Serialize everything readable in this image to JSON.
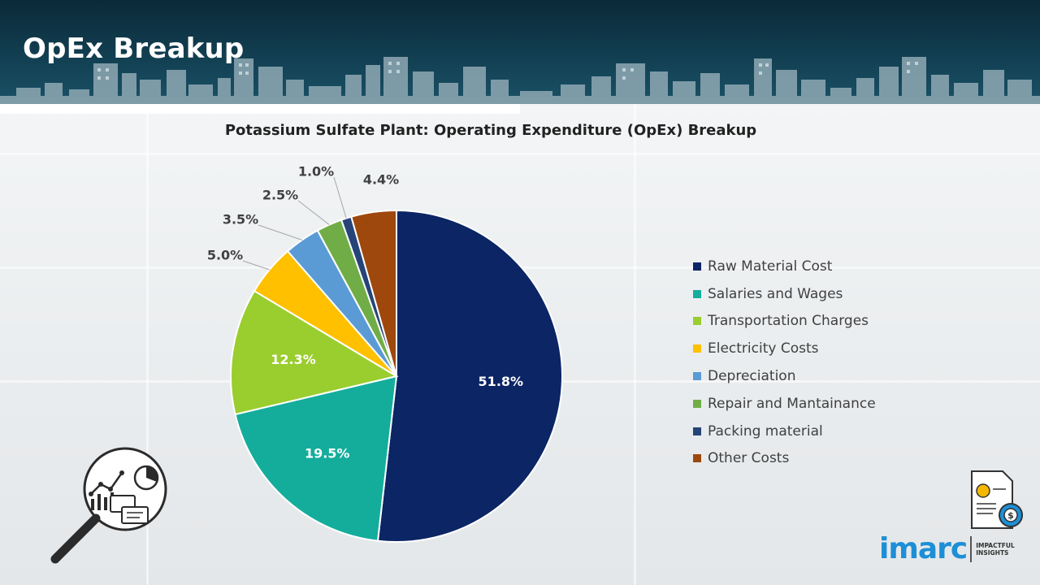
{
  "header": {
    "title": "OpEx Breakup"
  },
  "chart_data": {
    "type": "pie",
    "title": "Potassium Sulfate Plant: Operating Expenditure (OpEx) Breakup",
    "legend_position": "right",
    "categories": [
      "Raw Material Cost",
      "Salaries and Wages",
      "Transportation Charges",
      "Electricity Costs",
      "Depreciation",
      "Repair and Mantainance",
      "Packing material",
      "Other Costs"
    ],
    "values": [
      51.8,
      19.5,
      12.3,
      5.0,
      3.5,
      2.5,
      1.0,
      4.4
    ],
    "labels": [
      "51.8%",
      "19.5%",
      "12.3%",
      "5.0%",
      "3.5%",
      "2.5%",
      "1.0%",
      "4.4%"
    ],
    "colors": [
      "#0b2565",
      "#14ad9c",
      "#9acd2e",
      "#ffc000",
      "#5b9bd5",
      "#70ad47",
      "#264478",
      "#9e480e"
    ]
  },
  "logo": {
    "word": "imarc",
    "tagline": "IMPACTFUL\nINSIGHTS",
    "color": "#1d8fd6"
  },
  "icons": {
    "magnifier": "magnifier-analytics-icon",
    "document": "document-money-gear-icon"
  }
}
